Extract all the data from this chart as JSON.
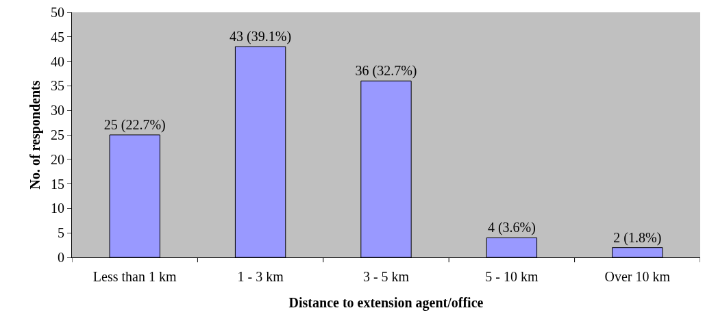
{
  "chart_data": {
    "type": "bar",
    "xlabel": "Distance to extension agent/office",
    "ylabel": "No. of respondents",
    "categories": [
      "Less than 1 km",
      "1 - 3 km",
      "3 - 5 km",
      "5 - 10 km",
      "Over 10 km"
    ],
    "values": [
      25,
      43,
      36,
      4,
      2
    ],
    "value_labels": [
      "25 (22.7%)",
      "43 (39.1%)",
      "36 (32.7%)",
      "4 (3.6%)",
      "2 (1.8%)"
    ],
    "color": "#9999ff",
    "ylim": [
      0,
      50
    ],
    "yticks": [
      0,
      5,
      10,
      15,
      20,
      25,
      30,
      35,
      40,
      45,
      50
    ]
  }
}
